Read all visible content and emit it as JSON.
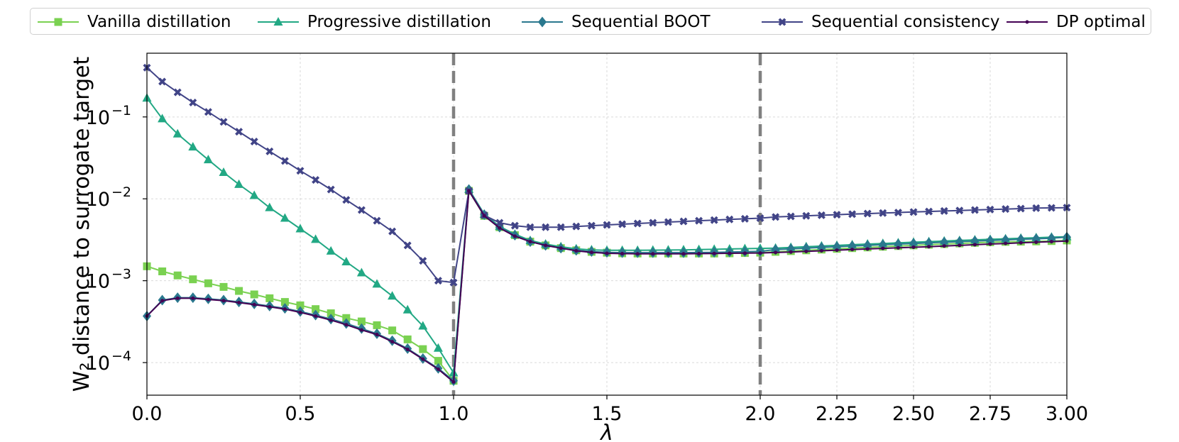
{
  "chart_data": {
    "type": "line",
    "xlabel": "λ",
    "ylabel": "W₂ distance to surrogate target",
    "yscale": "log",
    "ylim": [
      4e-05,
      0.6
    ],
    "grid": true,
    "legend_position": "top (outside plot, single row)",
    "x_axis": {
      "note": "piecewise scale: 0-2 linear, 2-3 stretched",
      "ticks": [
        0.0,
        0.5,
        1.0,
        1.5,
        2.0,
        2.25,
        2.5,
        2.75,
        3.0
      ],
      "tick_labels": [
        "0.0",
        "0.5",
        "1.0",
        "1.5",
        "2.0",
        "2.25",
        "2.50",
        "2.75",
        "3.00"
      ]
    },
    "y_axis": {
      "ticks": [
        0.0001,
        0.001,
        0.01,
        0.1
      ],
      "tick_labels": [
        [
          "10",
          "−4"
        ],
        [
          "10",
          "−3"
        ],
        [
          "10",
          "−2"
        ],
        [
          "10",
          "−1"
        ]
      ]
    },
    "vertical_lines": [
      1.0,
      2.0
    ],
    "series": [
      {
        "name": "Vanilla distillation",
        "color": "#7ad151",
        "marker": "square",
        "x": [
          0.0,
          0.05,
          0.1,
          0.15,
          0.2,
          0.25,
          0.3,
          0.35,
          0.4,
          0.45,
          0.5,
          0.55,
          0.6,
          0.65,
          0.7,
          0.75,
          0.8,
          0.85,
          0.9,
          0.95,
          1.0,
          1.05,
          1.1,
          1.15,
          1.2,
          1.25,
          1.3,
          1.35,
          1.4,
          1.45,
          1.5,
          1.55,
          1.6,
          1.65,
          1.7,
          1.75,
          1.8,
          1.85,
          1.9,
          1.95,
          2.0,
          2.05,
          2.1,
          2.15,
          2.2,
          2.25,
          2.3,
          2.35,
          2.4,
          2.45,
          2.5,
          2.55,
          2.6,
          2.65,
          2.7,
          2.75,
          2.8,
          2.85,
          2.9,
          2.95,
          3.0
        ],
        "y": [
          0.0015,
          0.0013,
          0.00116,
          0.00104,
          0.00093,
          0.00084,
          0.00075,
          0.00068,
          0.00061,
          0.00055,
          0.0005,
          0.00045,
          0.0004,
          0.00035,
          0.000318,
          0.000286,
          0.000247,
          0.000192,
          0.000146,
          0.000105,
          6e-05,
          0.0125,
          0.0062,
          0.0045,
          0.0036,
          0.003,
          0.0027,
          0.0025,
          0.00235,
          0.00225,
          0.0022,
          0.00216,
          0.00215,
          0.00215,
          0.00215,
          0.00215,
          0.00215,
          0.00215,
          0.00216,
          0.00218,
          0.0022,
          0.00225,
          0.0023,
          0.00235,
          0.0024,
          0.00245,
          0.0025,
          0.00255,
          0.0026,
          0.00265,
          0.0027,
          0.00275,
          0.0028,
          0.00285,
          0.0029,
          0.00295,
          0.00298,
          0.003,
          0.00302,
          0.00305,
          0.0031
        ]
      },
      {
        "name": "Progressive distillation",
        "color": "#22a884",
        "marker": "triangle",
        "x": [
          0.0,
          0.05,
          0.1,
          0.15,
          0.2,
          0.25,
          0.3,
          0.35,
          0.4,
          0.45,
          0.5,
          0.55,
          0.6,
          0.65,
          0.7,
          0.75,
          0.8,
          0.85,
          0.9,
          0.95,
          1.0,
          1.05,
          1.1,
          1.15,
          1.2,
          1.25,
          1.3,
          1.35,
          1.4,
          1.45,
          1.5,
          1.55,
          1.6,
          1.65,
          1.7,
          1.75,
          1.8,
          1.85,
          1.9,
          1.95,
          2.0,
          2.05,
          2.1,
          2.15,
          2.2,
          2.25,
          2.3,
          2.35,
          2.4,
          2.45,
          2.5,
          2.55,
          2.6,
          2.65,
          2.7,
          2.75,
          2.8,
          2.85,
          2.9,
          2.95,
          3.0
        ],
        "y": [
          0.17,
          0.095,
          0.062,
          0.043,
          0.03,
          0.021,
          0.015,
          0.011,
          0.0078,
          0.0058,
          0.0043,
          0.0032,
          0.0023,
          0.0017,
          0.00125,
          0.00091,
          0.00065,
          0.00044,
          0.00028,
          0.00015,
          7.5e-05,
          0.0131,
          0.0065,
          0.0046,
          0.0037,
          0.0031,
          0.0028,
          0.0026,
          0.00245,
          0.00238,
          0.00235,
          0.00235,
          0.00235,
          0.00236,
          0.00237,
          0.00238,
          0.0024,
          0.00242,
          0.00244,
          0.00246,
          0.00248,
          0.0025,
          0.00255,
          0.0026,
          0.00265,
          0.0027,
          0.00275,
          0.0028,
          0.00285,
          0.0029,
          0.00295,
          0.003,
          0.00305,
          0.0031,
          0.00315,
          0.0032,
          0.00325,
          0.0033,
          0.00335,
          0.0034,
          0.00345
        ]
      },
      {
        "name": "Sequential BOOT",
        "color": "#2a788e",
        "marker": "diamond",
        "x": [
          0.0,
          0.05,
          0.1,
          0.15,
          0.2,
          0.25,
          0.3,
          0.35,
          0.4,
          0.45,
          0.5,
          0.55,
          0.6,
          0.65,
          0.7,
          0.75,
          0.8,
          0.85,
          0.9,
          0.95,
          1.0,
          1.05,
          1.1,
          1.15,
          1.2,
          1.25,
          1.3,
          1.35,
          1.4,
          1.45,
          1.5,
          1.55,
          1.6,
          1.65,
          1.7,
          1.75,
          1.8,
          1.85,
          1.9,
          1.95,
          2.0,
          2.05,
          2.1,
          2.15,
          2.2,
          2.25,
          2.3,
          2.35,
          2.4,
          2.45,
          2.5,
          2.55,
          2.6,
          2.65,
          2.7,
          2.75,
          2.8,
          2.85,
          2.9,
          2.95,
          3.0
        ],
        "y": [
          0.00037,
          0.00058,
          0.00062,
          0.00062,
          0.0006,
          0.00058,
          0.00055,
          0.00052,
          0.00049,
          0.00046,
          0.00042,
          0.00038,
          0.00034,
          0.0003,
          0.00026,
          0.000225,
          0.000185,
          0.000148,
          0.000112,
          8.5e-05,
          6e-05,
          0.013,
          0.0064,
          0.0045,
          0.0036,
          0.003,
          0.0027,
          0.0025,
          0.00235,
          0.00227,
          0.00222,
          0.0022,
          0.0022,
          0.0022,
          0.0022,
          0.0022,
          0.00221,
          0.00222,
          0.00224,
          0.00226,
          0.00228,
          0.0024,
          0.00245,
          0.0025,
          0.00255,
          0.0026,
          0.00265,
          0.0027,
          0.00275,
          0.0028,
          0.00285,
          0.0029,
          0.00295,
          0.003,
          0.00305,
          0.0031,
          0.00315,
          0.0032,
          0.00325,
          0.0033,
          0.0034
        ]
      },
      {
        "name": "Sequential consistency",
        "color": "#414487",
        "marker": "x",
        "x": [
          0.0,
          0.05,
          0.1,
          0.15,
          0.2,
          0.25,
          0.3,
          0.35,
          0.4,
          0.45,
          0.5,
          0.55,
          0.6,
          0.65,
          0.7,
          0.75,
          0.8,
          0.85,
          0.9,
          0.95,
          1.0,
          1.05,
          1.1,
          1.15,
          1.2,
          1.25,
          1.3,
          1.35,
          1.4,
          1.45,
          1.5,
          1.55,
          1.6,
          1.65,
          1.7,
          1.75,
          1.8,
          1.85,
          1.9,
          1.95,
          2.0,
          2.05,
          2.1,
          2.15,
          2.2,
          2.25,
          2.3,
          2.35,
          2.4,
          2.45,
          2.5,
          2.55,
          2.6,
          2.65,
          2.7,
          2.75,
          2.8,
          2.85,
          2.9,
          2.95,
          3.0
        ],
        "y": [
          0.4,
          0.27,
          0.2,
          0.15,
          0.115,
          0.087,
          0.066,
          0.05,
          0.038,
          0.029,
          0.022,
          0.017,
          0.013,
          0.0097,
          0.0073,
          0.0054,
          0.004,
          0.0027,
          0.00175,
          0.001,
          0.00095,
          0.0125,
          0.0063,
          0.0051,
          0.0047,
          0.0045,
          0.0045,
          0.0045,
          0.0046,
          0.0047,
          0.0048,
          0.0049,
          0.005,
          0.0051,
          0.0052,
          0.0053,
          0.0054,
          0.0055,
          0.0056,
          0.0057,
          0.0058,
          0.006,
          0.0061,
          0.0062,
          0.0063,
          0.0064,
          0.0065,
          0.0066,
          0.0067,
          0.0068,
          0.0069,
          0.007,
          0.0071,
          0.0072,
          0.0073,
          0.0074,
          0.0075,
          0.0076,
          0.0077,
          0.00775,
          0.0078
        ]
      },
      {
        "name": "DP optimal",
        "color": "#440154",
        "marker": "dot",
        "x": [
          0.0,
          0.05,
          0.1,
          0.15,
          0.2,
          0.25,
          0.3,
          0.35,
          0.4,
          0.45,
          0.5,
          0.55,
          0.6,
          0.65,
          0.7,
          0.75,
          0.8,
          0.85,
          0.9,
          0.95,
          1.0,
          1.05,
          1.1,
          1.15,
          1.2,
          1.25,
          1.3,
          1.35,
          1.4,
          1.45,
          1.5,
          1.55,
          1.6,
          1.65,
          1.7,
          1.75,
          1.8,
          1.85,
          1.9,
          1.95,
          2.0,
          2.05,
          2.1,
          2.15,
          2.2,
          2.25,
          2.3,
          2.35,
          2.4,
          2.45,
          2.5,
          2.55,
          2.6,
          2.65,
          2.7,
          2.75,
          2.8,
          2.85,
          2.9,
          2.95,
          3.0
        ],
        "y": [
          0.00037,
          0.00057,
          0.00061,
          0.00061,
          0.00059,
          0.00057,
          0.00054,
          0.00051,
          0.00048,
          0.00045,
          0.00041,
          0.00037,
          0.00033,
          0.00029,
          0.00025,
          0.00022,
          0.00018,
          0.000145,
          0.00011,
          8.3e-05,
          5.8e-05,
          0.0125,
          0.0062,
          0.0044,
          0.0035,
          0.003,
          0.0027,
          0.0025,
          0.00232,
          0.00222,
          0.00216,
          0.00214,
          0.00213,
          0.00213,
          0.00213,
          0.00213,
          0.00214,
          0.00215,
          0.00216,
          0.00217,
          0.00218,
          0.00221,
          0.00224,
          0.00228,
          0.00232,
          0.00236,
          0.0024,
          0.00244,
          0.00248,
          0.00252,
          0.00256,
          0.0026,
          0.00265,
          0.0027,
          0.00275,
          0.0028,
          0.00285,
          0.0029,
          0.00295,
          0.003,
          0.00305
        ]
      }
    ]
  }
}
